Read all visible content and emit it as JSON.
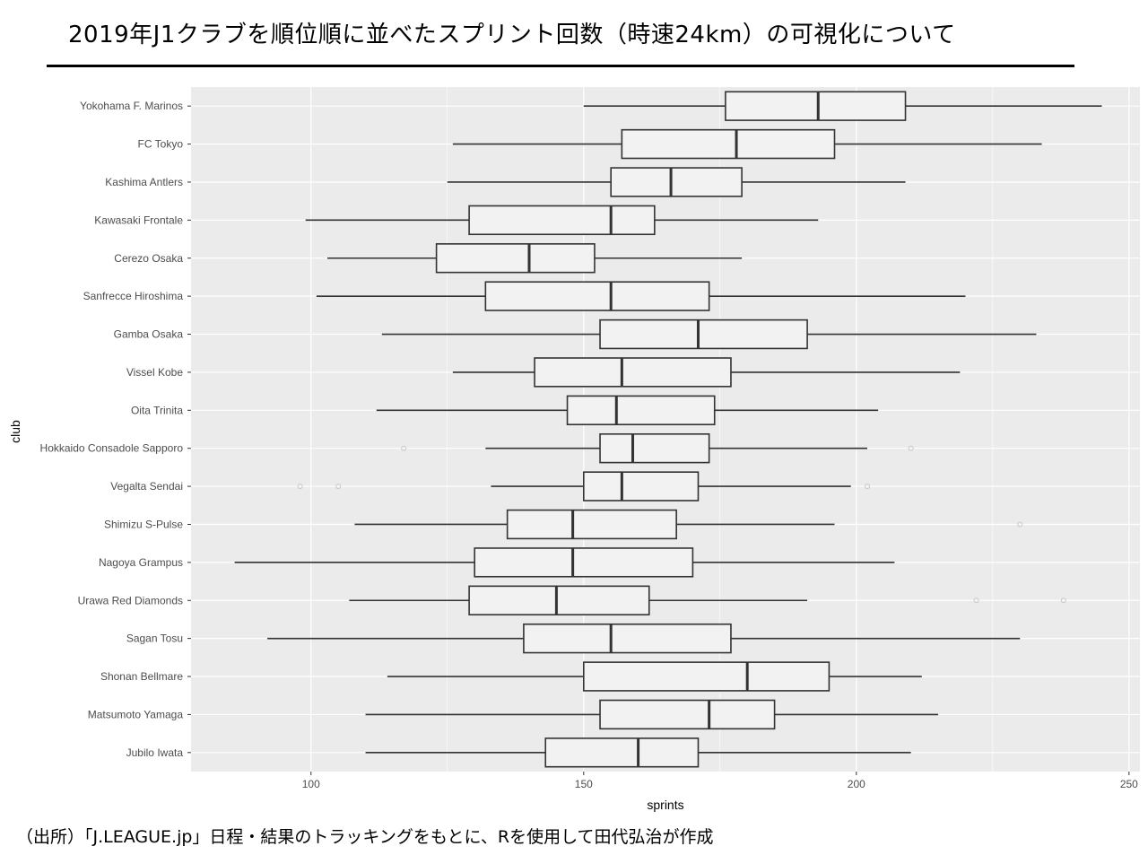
{
  "title": "2019年J1クラブを順位順に並べたスプリント回数（時速24km）の可視化について",
  "source_note": "（出所）「J.LEAGUE.jp」日程・結果のトラッキングをもとに、Rを使用して田代弘治が作成",
  "colors": {
    "panel": "#ebebeb",
    "grid": "#ffffff",
    "box_fill": "#f2f2f2",
    "box_stroke": "#333333",
    "outlier": "#c8c8c8"
  },
  "chart_data": {
    "type": "boxplot",
    "orientation": "horizontal",
    "xlabel": "sprints",
    "ylabel": "club",
    "xlim": [
      78,
      252
    ],
    "xticks": [
      100,
      150,
      200,
      250
    ],
    "grid": true,
    "clubs": [
      {
        "name": "Yokohama F. Marinos",
        "min": 150,
        "q1": 176,
        "median": 193,
        "q3": 209,
        "max": 245,
        "outliers": []
      },
      {
        "name": "FC Tokyo",
        "min": 126,
        "q1": 157,
        "median": 178,
        "q3": 196,
        "max": 234,
        "outliers": []
      },
      {
        "name": "Kashima Antlers",
        "min": 125,
        "q1": 155,
        "median": 166,
        "q3": 179,
        "max": 209,
        "outliers": []
      },
      {
        "name": "Kawasaki Frontale",
        "min": 99,
        "q1": 129,
        "median": 155,
        "q3": 163,
        "max": 193,
        "outliers": []
      },
      {
        "name": "Cerezo Osaka",
        "min": 103,
        "q1": 123,
        "median": 140,
        "q3": 152,
        "max": 179,
        "outliers": []
      },
      {
        "name": "Sanfrecce Hiroshima",
        "min": 101,
        "q1": 132,
        "median": 155,
        "q3": 173,
        "max": 220,
        "outliers": []
      },
      {
        "name": "Gamba Osaka",
        "min": 113,
        "q1": 153,
        "median": 171,
        "q3": 191,
        "max": 233,
        "outliers": []
      },
      {
        "name": "Vissel Kobe",
        "min": 126,
        "q1": 141,
        "median": 157,
        "q3": 177,
        "max": 219,
        "outliers": []
      },
      {
        "name": "Oita Trinita",
        "min": 112,
        "q1": 147,
        "median": 156,
        "q3": 174,
        "max": 204,
        "outliers": []
      },
      {
        "name": "Hokkaido Consadole Sapporo",
        "min": 132,
        "q1": 153,
        "median": 159,
        "q3": 173,
        "max": 202,
        "outliers": [
          117,
          210
        ]
      },
      {
        "name": "Vegalta Sendai",
        "min": 133,
        "q1": 150,
        "median": 157,
        "q3": 171,
        "max": 199,
        "outliers": [
          98,
          105,
          202
        ]
      },
      {
        "name": "Shimizu S-Pulse",
        "min": 108,
        "q1": 136,
        "median": 148,
        "q3": 167,
        "max": 196,
        "outliers": [
          230
        ]
      },
      {
        "name": "Nagoya Grampus",
        "min": 86,
        "q1": 130,
        "median": 148,
        "q3": 170,
        "max": 207,
        "outliers": []
      },
      {
        "name": "Urawa Red Diamonds",
        "min": 107,
        "q1": 129,
        "median": 145,
        "q3": 162,
        "max": 191,
        "outliers": [
          222,
          238
        ]
      },
      {
        "name": "Sagan Tosu",
        "min": 92,
        "q1": 139,
        "median": 155,
        "q3": 177,
        "max": 230,
        "outliers": []
      },
      {
        "name": "Shonan Bellmare",
        "min": 114,
        "q1": 150,
        "median": 180,
        "q3": 195,
        "max": 212,
        "outliers": []
      },
      {
        "name": "Matsumoto Yamaga",
        "min": 110,
        "q1": 153,
        "median": 173,
        "q3": 185,
        "max": 215,
        "outliers": []
      },
      {
        "name": "Jubilo Iwata",
        "min": 110,
        "q1": 143,
        "median": 160,
        "q3": 171,
        "max": 210,
        "outliers": []
      }
    ]
  }
}
